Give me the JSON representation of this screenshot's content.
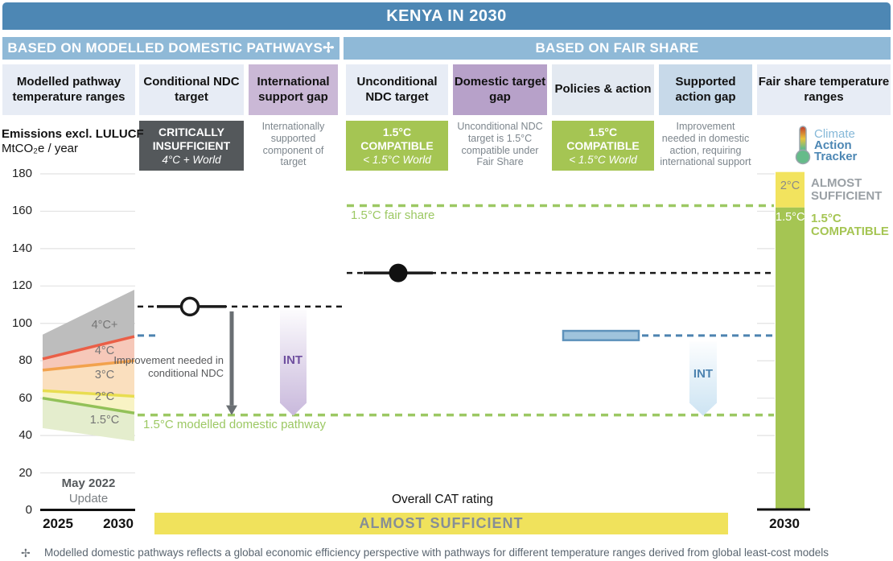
{
  "banner": {
    "title": "KENYA IN 2030"
  },
  "sections": {
    "left": "BASED ON MODELLED DOMESTIC PATHWAYS✢",
    "right": "BASED ON FAIR SHARE"
  },
  "columns": [
    {
      "label": "Modelled pathway temperature ranges"
    },
    {
      "label": "Conditional NDC target",
      "rating": "CRITICALLY INSUFFICIENT",
      "rating_world": "4°C + World",
      "rating_bg": "#54585b"
    },
    {
      "label": "International support gap",
      "note": "Internationally supported component of target"
    },
    {
      "label": "Unconditional NDC target",
      "rating": "1.5°C COMPATIBLE",
      "rating_world": "< 1.5°C World",
      "rating_bg": "#a5c553"
    },
    {
      "label": "Domestic target gap",
      "note": "Unconditional NDC target is 1.5°C compatible under Fair Share"
    },
    {
      "label": "Policies & action",
      "rating": "1.5°C COMPATIBLE",
      "rating_world": "< 1.5°C World",
      "rating_bg": "#a5c553"
    },
    {
      "label": "Supported action gap",
      "note": "Improvement needed in domestic action, requiring international support"
    },
    {
      "label": "Fair share temperature ranges"
    }
  ],
  "axis": {
    "unit_bold": "Emissions excl. LULUCF",
    "unit": "MtCO₂e / year",
    "x_left_start": "2025",
    "x_left_end": "2030",
    "x_right": "2030",
    "update_line1": "May 2022",
    "update_line2": "Update"
  },
  "logo": {
    "line1": "Climate",
    "line2": "Action",
    "line3": "Tracker"
  },
  "labels": {
    "improvement_conditional": "Improvement needed in conditional NDC",
    "int_purple": "INT",
    "int_blue": "INT",
    "modelled_pathway_line": "1.5°C modelled domestic pathway",
    "fair_share_line": "1.5°C fair share",
    "bar_2c": "2°C",
    "bar_15c": "1.5°C",
    "almost_sufficient": "ALMOST SUFFICIENT",
    "compatible_15": "1.5°C COMPATIBLE"
  },
  "footer": {
    "overall_label": "Overall CAT rating",
    "overall_rating": "ALMOST SUFFICIENT",
    "footnote_marker": "✢",
    "footnote": "Modelled domestic pathways reflects a global economic efficiency perspective with pathways for different temperature ranges derived from global least-cost models"
  },
  "chart_data": {
    "type": "composite",
    "title": "KENYA IN 2030",
    "ylabel": "Emissions excl. LULUCF MtCO₂e / year",
    "ylim": [
      0,
      180
    ],
    "y_ticks": [
      180,
      160,
      140,
      120,
      100,
      80,
      60,
      40,
      20,
      0
    ],
    "grid": "on",
    "modelled_pathway_fan": {
      "x": [
        "2025",
        "2030"
      ],
      "boundaries": [
        {
          "name": "top_4Cplus",
          "values": [
            94,
            118
          ],
          "color": null
        },
        {
          "name": "line_4C",
          "values": [
            81,
            93
          ],
          "color": "#ea5f47"
        },
        {
          "name": "line_3C",
          "values": [
            75,
            80
          ],
          "color": "#f2a24d"
        },
        {
          "name": "line_2C",
          "values": [
            64,
            61
          ],
          "color": "#e8dd50"
        },
        {
          "name": "line_15C",
          "values": [
            60,
            52
          ],
          "color": "#92c158"
        },
        {
          "name": "bottom_15C",
          "values": [
            44,
            37
          ],
          "color": null
        }
      ],
      "bands": [
        {
          "label": "4°C+",
          "fill": "#bdbdbd",
          "label_v": 98.5
        },
        {
          "label": "4°C",
          "fill": "#f6c8b9",
          "label_v": 85
        },
        {
          "label": "3°C",
          "fill": "#fadfbe",
          "label_v": 72
        },
        {
          "label": "2°C",
          "fill": "#f8f3c4",
          "label_v": 60.5
        },
        {
          "label": "1.5°C",
          "fill": "#e4edcd",
          "label_v": 48
        }
      ]
    },
    "markers": {
      "conditional_ndc": {
        "value": 109,
        "marker": "open-circle"
      },
      "unconditional_ndc": {
        "value": 127,
        "marker": "filled-circle"
      },
      "policies_action": {
        "range": [
          91,
          96
        ],
        "edge_color": "#5e92bb",
        "fill_color": "#9fc3dc",
        "dash_color": "#4d83b0"
      }
    },
    "reference_lines": [
      {
        "id": "modelled_15",
        "value": 51,
        "label": "1.5°C modelled domestic pathway",
        "color": "#9cc863"
      },
      {
        "id": "fair_share_15",
        "value": 163,
        "label": "1.5°C fair share",
        "color": "#9cc863"
      }
    ],
    "gaps": [
      {
        "id": "international_support_gap",
        "from": 109,
        "to": 51,
        "label": "INT",
        "color": "#c9b9dc"
      },
      {
        "id": "supported_action_gap",
        "from": 92,
        "to": 51,
        "label": "INT",
        "color": "#cde4f3"
      }
    ],
    "fair_share_bar": {
      "x": "2030",
      "segments": [
        {
          "label": "2°C",
          "from": 162,
          "to": 181,
          "color": "#f2e35e"
        },
        {
          "label": "1.5°C",
          "from": 0,
          "to": 162,
          "color": "#a5c553"
        }
      ]
    }
  }
}
